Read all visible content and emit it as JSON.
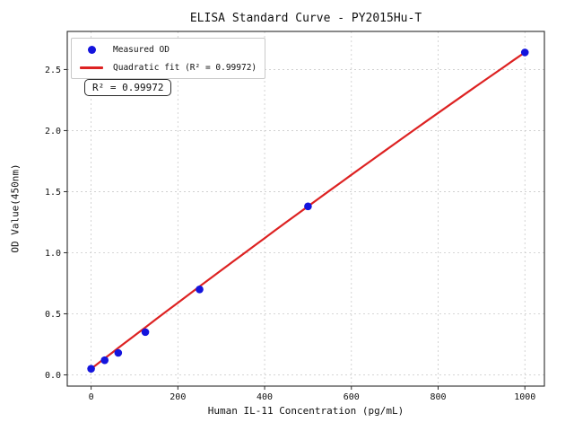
{
  "title": "ELISA Standard Curve - PY2015Hu-T",
  "annotation_text": "R² = 0.99972",
  "legend": {
    "measured_label": "Measured OD",
    "fit_label": "Quadratic fit (R² = 0.99972)"
  },
  "colors": {
    "point": "#1414dd",
    "line": "#dd2222",
    "grid": "#c9c9c9",
    "spine": "#2b2b2b",
    "text": "#111111"
  },
  "chart_data": {
    "type": "scatter",
    "title": "ELISA Standard Curve - PY2015Hu-T",
    "xlabel": "Human IL-11 Concentration (pg/mL)",
    "ylabel": "OD Value(450nm)",
    "series": [
      {
        "name": "Measured OD",
        "type": "scatter",
        "x": [
          0,
          31.25,
          62.5,
          125,
          250,
          500,
          1000
        ],
        "y": [
          0.05,
          0.12,
          0.18,
          0.35,
          0.7,
          1.38,
          2.64
        ]
      },
      {
        "name": "Quadratic fit (R² = 0.99972)",
        "type": "line",
        "fit": "quadratic",
        "r_squared": 0.99972,
        "coeffs": {
          "a": 0.05,
          "b": 0.00273,
          "c": -1.4e-07
        },
        "x_range": [
          0,
          1000
        ]
      }
    ],
    "xticks": [
      0,
      200,
      400,
      600,
      800,
      1000
    ],
    "yticks": [
      0.0,
      0.5,
      1.0,
      1.5,
      2.0,
      2.5
    ],
    "xlim": [
      -55,
      1045
    ],
    "ylim": [
      -0.092,
      2.812
    ],
    "grid": true,
    "grid_style": "dashed",
    "legend_position": "upper left"
  }
}
